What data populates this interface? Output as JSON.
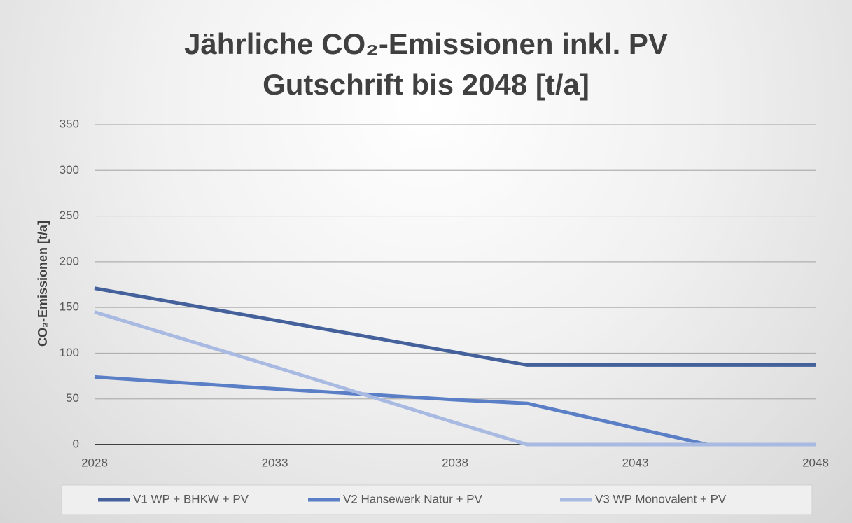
{
  "chart_data": {
    "type": "line",
    "title": "Jährliche CO₂-Emissionen inkl. PV Gutschrift bis 2048 [t/a]",
    "y_label": "CO₂-Emissionen [t/a]",
    "x": [
      2028,
      2033,
      2038,
      2040,
      2045,
      2048
    ],
    "series": [
      {
        "name": "V1 WP + BHKW + PV",
        "color": "#44619c",
        "values": [
          171,
          136,
          101,
          87,
          87,
          87
        ]
      },
      {
        "name": "V2 Hansewerk Natur + PV",
        "color": "#5b7fc6",
        "values": [
          74,
          61,
          49,
          45,
          0,
          0
        ]
      },
      {
        "name": "V3 WP Monovalent + PV",
        "color": "#a9bae2",
        "values": [
          145,
          85,
          24,
          0,
          0,
          0
        ]
      }
    ],
    "xlim": [
      2028,
      2048
    ],
    "xticks": [
      2028,
      2033,
      2038,
      2043,
      2048
    ],
    "ylim": [
      0,
      350
    ],
    "yticks": [
      0,
      50,
      100,
      150,
      200,
      250,
      300,
      350
    ],
    "grid": true,
    "legend": "bottom"
  }
}
